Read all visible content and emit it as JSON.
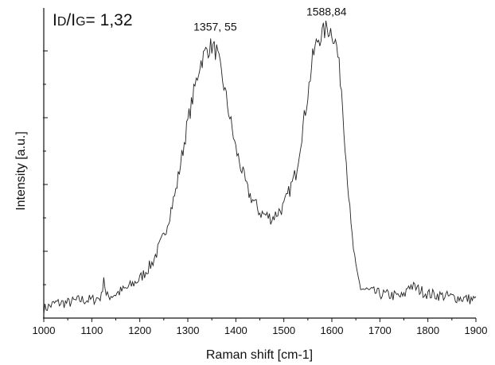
{
  "annotation": {
    "i1": "I",
    "d": "D",
    "slash": "/",
    "i2": "I",
    "g": "G",
    "rest": "= 1,32"
  },
  "chart_data": {
    "type": "line",
    "xlabel": "Raman shift [cm-1]",
    "ylabel": "Intensity [a.u.]",
    "xlim": [
      1000,
      1900
    ],
    "ylim": [
      0,
      1
    ],
    "x_ticks": [
      "1000",
      "1100",
      "1200",
      "1300",
      "1400",
      "1500",
      "1600",
      "1700",
      "1800",
      "1900"
    ],
    "y_tick_labels": false,
    "grid": false,
    "peak_labels": [
      {
        "x": 1357,
        "y": 0.93,
        "text": "1357, 55"
      },
      {
        "x": 1588.84,
        "y": 0.98,
        "text": "1588,84"
      }
    ],
    "series": [
      {
        "x": [
          1000,
          1025,
          1050,
          1075,
          1100,
          1120,
          1125,
          1130,
          1150,
          1175,
          1200,
          1225,
          1250,
          1275,
          1300,
          1325,
          1340,
          1350,
          1360,
          1375,
          1400,
          1425,
          1450,
          1475,
          1500,
          1525,
          1550,
          1560,
          1570,
          1580,
          1590,
          1600,
          1610,
          1620,
          1630,
          1640,
          1650,
          1660,
          1675,
          1700,
          1750,
          1760,
          1800,
          1850,
          1900
        ],
        "y": [
          0.03,
          0.05,
          0.05,
          0.06,
          0.06,
          0.07,
          0.14,
          0.07,
          0.08,
          0.1,
          0.13,
          0.18,
          0.27,
          0.42,
          0.65,
          0.84,
          0.89,
          0.9,
          0.88,
          0.77,
          0.56,
          0.42,
          0.35,
          0.33,
          0.37,
          0.48,
          0.74,
          0.86,
          0.92,
          0.94,
          0.96,
          0.95,
          0.9,
          0.76,
          0.52,
          0.3,
          0.16,
          0.1,
          0.09,
          0.08,
          0.07,
          0.11,
          0.08,
          0.07,
          0.06
        ]
      }
    ]
  }
}
